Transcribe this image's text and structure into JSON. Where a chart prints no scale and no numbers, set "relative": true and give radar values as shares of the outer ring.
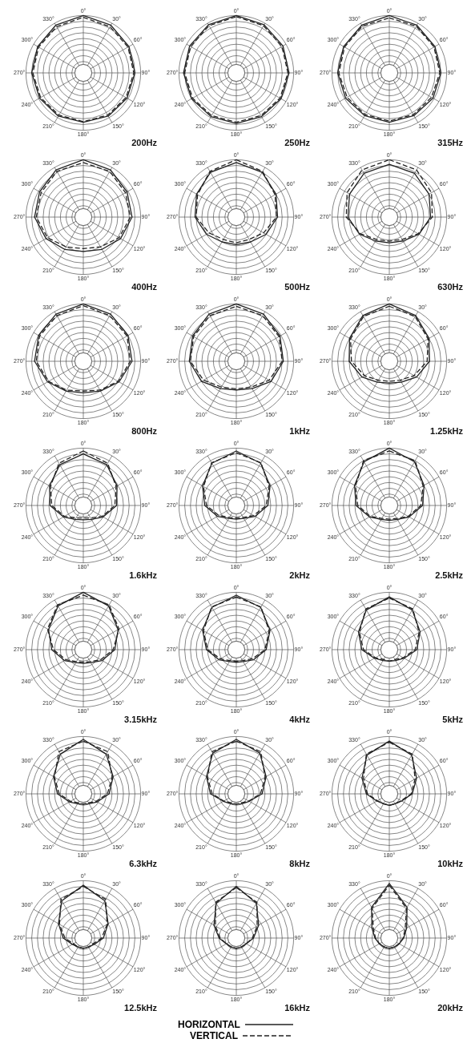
{
  "chart_data": [
    {
      "type": "radar",
      "title": "200Hz",
      "categories": [
        "0°",
        "30°",
        "60°",
        "90°",
        "120°",
        "150°",
        "180°",
        "210°",
        "240°",
        "270°",
        "300°",
        "330°"
      ],
      "relative": true,
      "grid": true,
      "marker": "none",
      "series": [
        {
          "color": "#222222",
          "line_style": "solid",
          "values": [
            1,
            0.96,
            0.92,
            0.9,
            0.88,
            0.87,
            0.86,
            0.87,
            0.88,
            0.9,
            0.92,
            0.96
          ]
        },
        {
          "color": "#222222",
          "line_style": "dashed",
          "values": [
            0.97,
            0.93,
            0.9,
            0.88,
            0.86,
            0.85,
            0.85,
            0.85,
            0.86,
            0.88,
            0.9,
            0.93
          ]
        }
      ]
    },
    {
      "type": "radar",
      "title": "250Hz",
      "categories": [
        "0°",
        "30°",
        "60°",
        "90°",
        "120°",
        "150°",
        "180°",
        "210°",
        "240°",
        "270°",
        "300°",
        "330°"
      ],
      "relative": true,
      "grid": true,
      "marker": "none",
      "series": [
        {
          "color": "#222222",
          "line_style": "solid",
          "values": [
            1,
            0.97,
            0.94,
            0.92,
            0.9,
            0.88,
            0.88,
            0.88,
            0.9,
            0.92,
            0.94,
            0.97
          ]
        },
        {
          "color": "#222222",
          "line_style": "dashed",
          "values": [
            0.98,
            0.95,
            0.92,
            0.9,
            0.88,
            0.86,
            0.86,
            0.86,
            0.88,
            0.9,
            0.92,
            0.95
          ]
        }
      ]
    },
    {
      "type": "radar",
      "title": "315Hz",
      "categories": [
        "0°",
        "30°",
        "60°",
        "90°",
        "120°",
        "150°",
        "180°",
        "210°",
        "240°",
        "270°",
        "300°",
        "330°"
      ],
      "relative": true,
      "grid": true,
      "marker": "none",
      "series": [
        {
          "color": "#222222",
          "line_style": "solid",
          "values": [
            1,
            0.96,
            0.92,
            0.9,
            0.88,
            0.86,
            0.86,
            0.86,
            0.88,
            0.9,
            0.92,
            0.96
          ]
        },
        {
          "color": "#222222",
          "line_style": "dashed",
          "values": [
            0.96,
            0.94,
            0.9,
            0.88,
            0.85,
            0.84,
            0.84,
            0.84,
            0.85,
            0.88,
            0.9,
            0.94
          ]
        }
      ]
    },
    {
      "type": "radar",
      "title": "400Hz",
      "categories": [
        "0°",
        "30°",
        "60°",
        "90°",
        "120°",
        "150°",
        "180°",
        "210°",
        "240°",
        "270°",
        "300°",
        "330°"
      ],
      "relative": true,
      "grid": true,
      "marker": "none",
      "series": [
        {
          "color": "#222222",
          "line_style": "solid",
          "values": [
            1,
            0.95,
            0.88,
            0.85,
            0.75,
            0.65,
            0.6,
            0.65,
            0.75,
            0.85,
            0.88,
            0.95
          ]
        },
        {
          "color": "#222222",
          "line_style": "dashed",
          "values": [
            0.95,
            0.92,
            0.85,
            0.82,
            0.72,
            0.6,
            0.55,
            0.6,
            0.72,
            0.82,
            0.85,
            0.92
          ]
        }
      ]
    },
    {
      "type": "radar",
      "title": "500Hz",
      "categories": [
        "0°",
        "30°",
        "60°",
        "90°",
        "120°",
        "150°",
        "180°",
        "210°",
        "240°",
        "270°",
        "300°",
        "330°"
      ],
      "relative": true,
      "grid": true,
      "marker": "none",
      "series": [
        {
          "color": "#222222",
          "line_style": "solid",
          "values": [
            0.95,
            0.9,
            0.8,
            0.72,
            0.6,
            0.5,
            0.48,
            0.5,
            0.6,
            0.72,
            0.8,
            0.9
          ]
        },
        {
          "color": "#222222",
          "line_style": "dashed",
          "values": [
            1,
            0.92,
            0.78,
            0.7,
            0.55,
            0.45,
            0.45,
            0.45,
            0.55,
            0.7,
            0.78,
            0.92
          ]
        }
      ]
    },
    {
      "type": "radar",
      "title": "630Hz",
      "categories": [
        "0°",
        "30°",
        "60°",
        "90°",
        "120°",
        "150°",
        "180°",
        "210°",
        "240°",
        "270°",
        "300°",
        "330°"
      ],
      "relative": true,
      "grid": true,
      "marker": "none",
      "series": [
        {
          "color": "#222222",
          "line_style": "solid",
          "values": [
            0.92,
            0.88,
            0.8,
            0.72,
            0.6,
            0.48,
            0.45,
            0.48,
            0.6,
            0.72,
            0.8,
            0.88
          ]
        },
        {
          "color": "#222222",
          "line_style": "dashed",
          "values": [
            1,
            0.95,
            0.85,
            0.75,
            0.58,
            0.45,
            0.42,
            0.45,
            0.58,
            0.75,
            0.85,
            0.95
          ]
        }
      ]
    },
    {
      "type": "radar",
      "title": "800Hz",
      "categories": [
        "0°",
        "30°",
        "60°",
        "90°",
        "120°",
        "150°",
        "180°",
        "210°",
        "240°",
        "270°",
        "300°",
        "330°"
      ],
      "relative": true,
      "grid": true,
      "marker": "none",
      "series": [
        {
          "color": "#222222",
          "line_style": "solid",
          "values": [
            1,
            0.95,
            0.9,
            0.85,
            0.72,
            0.6,
            0.55,
            0.6,
            0.72,
            0.85,
            0.9,
            0.95
          ]
        },
        {
          "color": "#222222",
          "line_style": "dashed",
          "values": [
            0.97,
            0.92,
            0.88,
            0.82,
            0.7,
            0.58,
            0.52,
            0.58,
            0.7,
            0.82,
            0.88,
            0.92
          ]
        }
      ]
    },
    {
      "type": "radar",
      "title": "1kHz",
      "categories": [
        "0°",
        "30°",
        "60°",
        "90°",
        "120°",
        "150°",
        "180°",
        "210°",
        "240°",
        "270°",
        "300°",
        "330°"
      ],
      "relative": true,
      "grid": true,
      "marker": "none",
      "series": [
        {
          "color": "#222222",
          "line_style": "solid",
          "values": [
            1,
            0.95,
            0.88,
            0.82,
            0.7,
            0.55,
            0.5,
            0.55,
            0.7,
            0.82,
            0.88,
            0.95
          ]
        },
        {
          "color": "#222222",
          "line_style": "dashed",
          "values": [
            0.96,
            0.92,
            0.86,
            0.8,
            0.66,
            0.52,
            0.48,
            0.52,
            0.66,
            0.8,
            0.86,
            0.92
          ]
        }
      ]
    },
    {
      "type": "radar",
      "title": "1.25kHz",
      "categories": [
        "0°",
        "30°",
        "60°",
        "90°",
        "120°",
        "150°",
        "180°",
        "210°",
        "240°",
        "270°",
        "300°",
        "330°"
      ],
      "relative": true,
      "grid": true,
      "marker": "none",
      "series": [
        {
          "color": "#222222",
          "line_style": "solid",
          "values": [
            1,
            0.92,
            0.8,
            0.7,
            0.55,
            0.42,
            0.38,
            0.42,
            0.55,
            0.7,
            0.8,
            0.92
          ]
        },
        {
          "color": "#222222",
          "line_style": "dashed",
          "values": [
            0.96,
            0.9,
            0.78,
            0.66,
            0.5,
            0.38,
            0.35,
            0.38,
            0.5,
            0.66,
            0.78,
            0.9
          ]
        }
      ]
    },
    {
      "type": "radar",
      "title": "1.6kHz",
      "categories": [
        "0°",
        "30°",
        "60°",
        "90°",
        "120°",
        "150°",
        "180°",
        "210°",
        "240°",
        "270°",
        "300°",
        "330°"
      ],
      "relative": true,
      "grid": true,
      "marker": "none",
      "series": [
        {
          "color": "#222222",
          "line_style": "solid",
          "values": [
            0.9,
            0.82,
            0.68,
            0.58,
            0.4,
            0.28,
            0.25,
            0.28,
            0.4,
            0.58,
            0.68,
            0.82
          ]
        },
        {
          "color": "#222222",
          "line_style": "dashed",
          "values": [
            0.95,
            0.85,
            0.66,
            0.55,
            0.38,
            0.25,
            0.22,
            0.25,
            0.38,
            0.55,
            0.66,
            0.85
          ]
        }
      ]
    },
    {
      "type": "radar",
      "title": "2kHz",
      "categories": [
        "0°",
        "30°",
        "60°",
        "90°",
        "120°",
        "150°",
        "180°",
        "210°",
        "240°",
        "270°",
        "300°",
        "330°"
      ],
      "relative": true,
      "grid": true,
      "marker": "none",
      "series": [
        {
          "color": "#222222",
          "line_style": "solid",
          "values": [
            0.95,
            0.85,
            0.68,
            0.55,
            0.38,
            0.26,
            0.24,
            0.26,
            0.38,
            0.55,
            0.68,
            0.85
          ]
        },
        {
          "color": "#222222",
          "line_style": "dashed",
          "values": [
            0.92,
            0.86,
            0.66,
            0.52,
            0.35,
            0.24,
            0.22,
            0.24,
            0.35,
            0.52,
            0.66,
            0.86
          ]
        }
      ]
    },
    {
      "type": "radar",
      "title": "2.5kHz",
      "categories": [
        "0°",
        "30°",
        "60°",
        "90°",
        "120°",
        "150°",
        "180°",
        "210°",
        "240°",
        "270°",
        "300°",
        "330°"
      ],
      "relative": true,
      "grid": true,
      "marker": "none",
      "series": [
        {
          "color": "#222222",
          "line_style": "solid",
          "values": [
            1,
            0.88,
            0.7,
            0.58,
            0.4,
            0.28,
            0.26,
            0.28,
            0.4,
            0.58,
            0.7,
            0.88
          ]
        },
        {
          "color": "#222222",
          "line_style": "dashed",
          "values": [
            0.95,
            0.9,
            0.68,
            0.55,
            0.38,
            0.26,
            0.24,
            0.26,
            0.38,
            0.55,
            0.68,
            0.9
          ]
        }
      ]
    },
    {
      "type": "radar",
      "title": "3.15kHz",
      "categories": [
        "0°",
        "30°",
        "60°",
        "90°",
        "120°",
        "150°",
        "180°",
        "210°",
        "240°",
        "270°",
        "300°",
        "330°"
      ],
      "relative": true,
      "grid": true,
      "marker": "none",
      "series": [
        {
          "color": "#222222",
          "line_style": "solid",
          "values": [
            1,
            0.88,
            0.7,
            0.55,
            0.38,
            0.26,
            0.24,
            0.26,
            0.38,
            0.55,
            0.7,
            0.88
          ]
        },
        {
          "color": "#222222",
          "line_style": "dashed",
          "values": [
            0.95,
            0.9,
            0.72,
            0.52,
            0.35,
            0.24,
            0.22,
            0.24,
            0.35,
            0.52,
            0.72,
            0.9
          ]
        }
      ]
    },
    {
      "type": "radar",
      "title": "4kHz",
      "categories": [
        "0°",
        "30°",
        "60°",
        "90°",
        "120°",
        "150°",
        "180°",
        "210°",
        "240°",
        "270°",
        "300°",
        "330°"
      ],
      "relative": true,
      "grid": true,
      "marker": "none",
      "series": [
        {
          "color": "#222222",
          "line_style": "solid",
          "values": [
            0.95,
            0.85,
            0.68,
            0.52,
            0.35,
            0.24,
            0.22,
            0.24,
            0.35,
            0.52,
            0.68,
            0.85
          ]
        },
        {
          "color": "#222222",
          "line_style": "dashed",
          "values": [
            0.92,
            0.86,
            0.66,
            0.5,
            0.32,
            0.22,
            0.2,
            0.22,
            0.32,
            0.5,
            0.66,
            0.86
          ]
        }
      ]
    },
    {
      "type": "radar",
      "title": "5kHz",
      "categories": [
        "0°",
        "30°",
        "60°",
        "90°",
        "120°",
        "150°",
        "180°",
        "210°",
        "240°",
        "270°",
        "300°",
        "330°"
      ],
      "relative": true,
      "grid": true,
      "marker": "none",
      "series": [
        {
          "color": "#222222",
          "line_style": "solid",
          "values": [
            0.92,
            0.8,
            0.62,
            0.48,
            0.3,
            0.22,
            0.2,
            0.22,
            0.3,
            0.48,
            0.62,
            0.8
          ]
        },
        {
          "color": "#222222",
          "line_style": "dashed",
          "values": [
            0.9,
            0.82,
            0.6,
            0.45,
            0.28,
            0.2,
            0.2,
            0.2,
            0.28,
            0.45,
            0.6,
            0.82
          ]
        }
      ]
    },
    {
      "type": "radar",
      "title": "6.3kHz",
      "categories": [
        "0°",
        "30°",
        "60°",
        "90°",
        "120°",
        "150°",
        "180°",
        "210°",
        "240°",
        "270°",
        "300°",
        "330°"
      ],
      "relative": true,
      "grid": true,
      "marker": "none",
      "series": [
        {
          "color": "#222222",
          "line_style": "solid",
          "values": [
            0.95,
            0.8,
            0.6,
            0.45,
            0.28,
            0.2,
            0.18,
            0.2,
            0.28,
            0.45,
            0.6,
            0.8
          ]
        },
        {
          "color": "#222222",
          "line_style": "dashed",
          "values": [
            0.92,
            0.85,
            0.58,
            0.42,
            0.26,
            0.18,
            0.18,
            0.18,
            0.26,
            0.42,
            0.58,
            0.85
          ]
        }
      ]
    },
    {
      "type": "radar",
      "title": "8kHz",
      "categories": [
        "0°",
        "30°",
        "60°",
        "90°",
        "120°",
        "150°",
        "180°",
        "210°",
        "240°",
        "270°",
        "300°",
        "330°"
      ],
      "relative": true,
      "grid": true,
      "marker": "none",
      "series": [
        {
          "color": "#222222",
          "line_style": "solid",
          "values": [
            0.95,
            0.82,
            0.6,
            0.45,
            0.26,
            0.2,
            0.18,
            0.2,
            0.26,
            0.45,
            0.6,
            0.82
          ]
        },
        {
          "color": "#222222",
          "line_style": "dashed",
          "values": [
            0.92,
            0.85,
            0.58,
            0.42,
            0.25,
            0.18,
            0.18,
            0.18,
            0.25,
            0.42,
            0.58,
            0.85
          ]
        }
      ]
    },
    {
      "type": "radar",
      "title": "10kHz",
      "categories": [
        "0°",
        "30°",
        "60°",
        "90°",
        "120°",
        "150°",
        "180°",
        "210°",
        "240°",
        "270°",
        "300°",
        "330°"
      ],
      "relative": true,
      "grid": true,
      "marker": "none",
      "series": [
        {
          "color": "#222222",
          "line_style": "solid",
          "values": [
            0.92,
            0.78,
            0.55,
            0.4,
            0.25,
            0.2,
            0.2,
            0.2,
            0.25,
            0.4,
            0.55,
            0.78
          ]
        },
        {
          "color": "#222222",
          "line_style": "dashed",
          "values": [
            0.9,
            0.8,
            0.52,
            0.38,
            0.24,
            0.2,
            0.2,
            0.2,
            0.24,
            0.38,
            0.52,
            0.8
          ]
        }
      ]
    },
    {
      "type": "radar",
      "title": "12.5kHz",
      "categories": [
        "0°",
        "30°",
        "60°",
        "90°",
        "120°",
        "150°",
        "180°",
        "210°",
        "240°",
        "270°",
        "300°",
        "330°"
      ],
      "relative": true,
      "grid": true,
      "marker": "none",
      "series": [
        {
          "color": "#222222",
          "line_style": "solid",
          "values": [
            0.92,
            0.75,
            0.5,
            0.35,
            0.22,
            0.18,
            0.18,
            0.18,
            0.22,
            0.35,
            0.5,
            0.75
          ]
        },
        {
          "color": "#222222",
          "line_style": "dashed",
          "values": [
            0.9,
            0.78,
            0.48,
            0.32,
            0.2,
            0.18,
            0.18,
            0.18,
            0.2,
            0.32,
            0.48,
            0.78
          ]
        }
      ]
    },
    {
      "type": "radar",
      "title": "16kHz",
      "categories": [
        "0°",
        "30°",
        "60°",
        "90°",
        "120°",
        "150°",
        "180°",
        "210°",
        "240°",
        "270°",
        "300°",
        "330°"
      ],
      "relative": true,
      "grid": true,
      "marker": "none",
      "series": [
        {
          "color": "#222222",
          "line_style": "solid",
          "values": [
            0.9,
            0.7,
            0.45,
            0.3,
            0.2,
            0.18,
            0.18,
            0.18,
            0.2,
            0.3,
            0.45,
            0.7
          ]
        },
        {
          "color": "#222222",
          "line_style": "dashed",
          "values": [
            0.88,
            0.72,
            0.42,
            0.28,
            0.2,
            0.18,
            0.18,
            0.18,
            0.2,
            0.28,
            0.42,
            0.72
          ]
        }
      ]
    },
    {
      "type": "radar",
      "title": "20kHz",
      "categories": [
        "0°",
        "30°",
        "60°",
        "90°",
        "120°",
        "150°",
        "180°",
        "210°",
        "240°",
        "270°",
        "300°",
        "330°"
      ],
      "relative": true,
      "grid": true,
      "marker": "none",
      "legend": "bottom",
      "series": [
        {
          "name": "HORIZONTAL",
          "color": "#222222",
          "line_style": "solid",
          "values": [
            0.95,
            0.62,
            0.35,
            0.25,
            0.2,
            0.18,
            0.18,
            0.18,
            0.2,
            0.25,
            0.35,
            0.62
          ]
        },
        {
          "name": "VERTICAL",
          "color": "#222222",
          "line_style": "dashed",
          "values": [
            0.92,
            0.6,
            0.32,
            0.24,
            0.2,
            0.18,
            0.18,
            0.18,
            0.2,
            0.24,
            0.32,
            0.6
          ]
        }
      ]
    }
  ]
}
